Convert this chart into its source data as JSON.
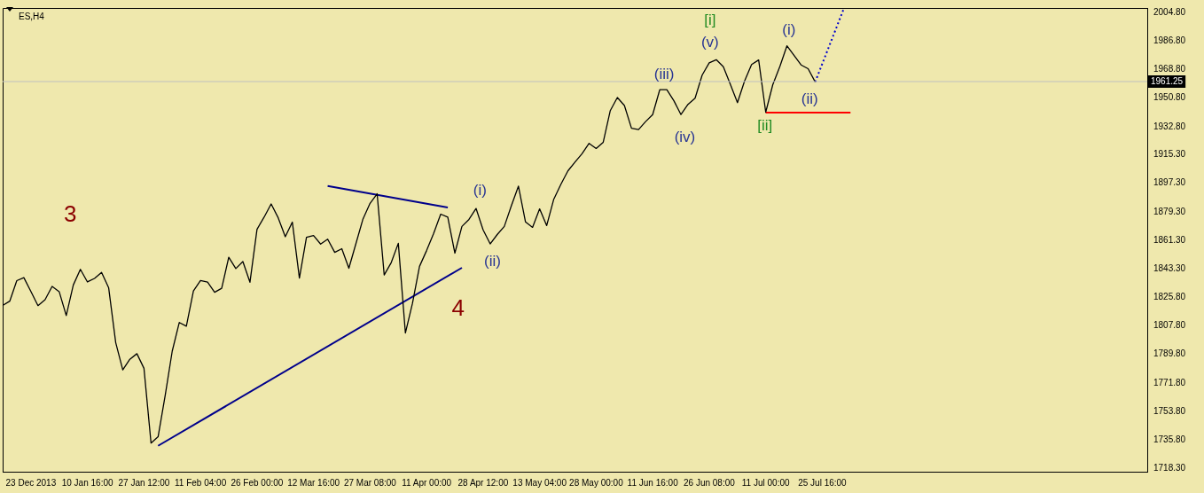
{
  "chart_data": {
    "type": "line",
    "title": "ES,H4",
    "ylim": [
      1716,
      2007.5
    ],
    "categories": [
      null,
      null,
      null,
      null,
      "23 Dec 2013",
      null,
      null,
      null,
      null,
      null,
      null,
      null,
      "10 Jan 16:00",
      null,
      null,
      null,
      null,
      null,
      null,
      null,
      "27 Jan 12:00",
      null,
      null,
      null,
      null,
      null,
      null,
      null,
      "11 Feb 04:00",
      null,
      null,
      null,
      null,
      null,
      null,
      null,
      "26 Feb 00:00",
      null,
      null,
      null,
      null,
      null,
      null,
      null,
      "12 Mar 16:00",
      null,
      null,
      null,
      null,
      null,
      null,
      null,
      "27 Mar 08:00",
      null,
      null,
      null,
      null,
      null,
      null,
      null,
      "11 Apr 00:00",
      null,
      null,
      null,
      null,
      null,
      null,
      null,
      "28 Apr 12:00",
      null,
      null,
      null,
      null,
      null,
      null,
      null,
      "13 May 04:00",
      null,
      null,
      null,
      null,
      null,
      null,
      null,
      "28 May 00:00",
      null,
      null,
      null,
      null,
      null,
      null,
      null,
      "11 Jun 16:00",
      null,
      null,
      null,
      null,
      null,
      null,
      null,
      "26 Jun 08:00",
      null,
      null,
      null,
      null,
      null,
      null,
      null,
      "11 Jul 00:00",
      null,
      null,
      null,
      null,
      null,
      null,
      null,
      "25 Jul 16:00",
      null,
      null,
      null,
      null,
      null,
      null,
      null,
      null,
      null,
      null,
      null,
      null,
      null,
      null,
      null,
      null,
      null,
      null,
      null,
      null,
      null,
      null,
      null,
      null,
      null,
      null,
      null,
      null,
      null,
      null,
      null,
      null,
      null,
      null,
      null,
      null,
      null,
      null,
      null,
      null,
      null,
      null,
      null,
      null,
      null,
      null
    ],
    "yticks": [
      {
        "value": 1718.3,
        "label": "1718.30"
      },
      {
        "value": 1735.8,
        "label": "1735.80"
      },
      {
        "value": 1753.8,
        "label": "1753.80"
      },
      {
        "value": 1771.8,
        "label": "1771.80"
      },
      {
        "value": 1789.8,
        "label": "1789.80"
      },
      {
        "value": 1807.8,
        "label": "1807.80"
      },
      {
        "value": 1825.8,
        "label": "1825.80"
      },
      {
        "value": 1843.3,
        "label": "1843.30"
      },
      {
        "value": 1861.3,
        "label": "1861.30"
      },
      {
        "value": 1879.3,
        "label": "1879.30"
      },
      {
        "value": 1897.3,
        "label": "1897.30"
      },
      {
        "value": 1915.3,
        "label": "1915.30"
      },
      {
        "value": 1932.8,
        "label": "1932.80"
      },
      {
        "value": 1950.8,
        "label": "1950.80"
      },
      {
        "value": 1968.8,
        "label": "1968.80"
      },
      {
        "value": 1986.8,
        "label": "1986.80"
      },
      {
        "value": 2004.8,
        "label": "2004.80"
      }
    ],
    "grid": false,
    "legend": false,
    "marker": "none",
    "ref_lines": [
      {
        "axis": "y",
        "value": 1961.25,
        "label": "1961.25",
        "color": "#c0c0c0"
      }
    ],
    "series": [
      {
        "color": "#000000",
        "values": [
          1820.5,
          1823.2,
          1836.1,
          1838.0,
          1829.3,
          1820.4,
          1824.1,
          1832.5,
          1829.2,
          1814.2,
          1833.4,
          1843.2,
          1835.3,
          1837.5,
          1841.3,
          1831.7,
          1797.2,
          1780.0,
          1786.7,
          1790.2,
          1781.0,
          1734.0,
          1738.0,
          1763.9,
          1791.8,
          1809.8,
          1807.5,
          1829.6,
          1836.2,
          1835.2,
          1828.8,
          1831.3,
          1850.8,
          1843.7,
          1848.1,
          1835.1,
          1868.4,
          1876.0,
          1884.3,
          1875.6,
          1863.7,
          1872.9,
          1837.7,
          1863.4,
          1864.5,
          1859.1,
          1862.2,
          1853.9,
          1856.2,
          1843.9,
          1859.4,
          1874.9,
          1884.7,
          1890.7,
          1839.7,
          1847.5,
          1859.6,
          1803.2,
          1821.8,
          1845.1,
          1855.0,
          1865.8,
          1877.9,
          1876.0,
          1853.4,
          1870.2,
          1874.6,
          1881.5,
          1868.0,
          1859.2,
          1865.1,
          1870.2,
          1883.2,
          1895.5,
          1873.0,
          1869.6,
          1881.2,
          1870.7,
          1887.3,
          1896.6,
          1905.1,
          1910.6,
          1915.9,
          1922.4,
          1919.2,
          1923.1,
          1943.0,
          1951.2,
          1946.2,
          1931.9,
          1931.1,
          1936.1,
          1940.5,
          1956.1,
          1956.1,
          1949.2,
          1940.5,
          1946.9,
          1950.8,
          1965.3,
          1973.0,
          1975.0,
          1970.6,
          1959.4,
          1948.0,
          1961.5,
          1972.0,
          1974.8,
          1942.0,
          1959.3,
          1970.7,
          1983.7,
          1977.7,
          1971.7,
          1969.3,
          1961.0,
          null,
          null,
          null,
          null,
          null,
          null,
          null,
          null,
          null,
          null,
          null,
          null,
          null,
          null,
          null,
          null,
          null,
          null,
          null,
          null,
          null,
          null,
          null,
          null,
          null,
          null,
          null,
          null,
          null,
          null,
          null,
          null,
          null,
          null,
          null,
          null,
          null,
          null,
          null,
          null,
          null,
          null,
          null,
          null,
          null,
          null,
          null
        ]
      },
      {
        "color": "#00008b",
        "values": [
          null,
          null,
          null,
          null,
          null,
          null,
          null,
          null,
          null,
          null,
          null,
          null,
          null,
          null,
          null,
          null,
          null,
          null,
          null,
          null,
          null,
          null,
          null,
          null,
          null,
          null,
          null,
          null,
          null,
          null,
          null,
          null,
          null,
          null,
          null,
          null,
          null,
          null,
          null,
          null,
          null,
          null,
          null,
          null,
          null,
          null,
          1895.6,
          null,
          null,
          null,
          null,
          null,
          null,
          null,
          null,
          null,
          null,
          null,
          null,
          null,
          null,
          null,
          null,
          1882.1,
          null,
          null,
          null,
          null,
          null,
          null,
          null,
          null,
          null,
          null,
          null,
          null,
          null,
          null,
          null,
          null,
          null,
          null,
          null,
          null,
          null,
          null,
          null,
          null,
          null,
          null,
          null,
          null,
          null,
          null,
          null,
          null,
          null,
          null,
          null,
          null,
          null,
          null,
          null,
          null,
          null,
          null,
          null,
          null,
          null,
          null,
          null,
          null,
          null,
          null,
          null,
          null,
          null,
          null,
          null,
          null,
          null,
          null,
          null,
          null,
          null,
          null,
          null,
          null,
          null,
          null,
          null,
          null,
          null,
          null,
          null,
          null,
          null,
          null,
          null,
          null,
          null,
          null,
          null,
          null,
          null,
          null,
          null,
          null,
          null,
          null,
          null,
          null,
          null,
          null,
          null,
          null,
          null,
          null,
          null,
          null,
          null,
          null,
          null
        ]
      },
      {
        "color": "#00008b",
        "values": [
          null,
          null,
          null,
          null,
          null,
          null,
          null,
          null,
          null,
          null,
          null,
          null,
          null,
          null,
          null,
          null,
          null,
          null,
          null,
          null,
          null,
          null,
          1732.3,
          null,
          null,
          null,
          null,
          null,
          null,
          null,
          null,
          null,
          null,
          null,
          null,
          null,
          null,
          null,
          null,
          null,
          null,
          null,
          null,
          null,
          null,
          null,
          null,
          null,
          null,
          null,
          null,
          null,
          null,
          null,
          null,
          null,
          null,
          null,
          null,
          null,
          null,
          null,
          null,
          null,
          null,
          1844.2,
          null,
          null,
          null,
          null,
          null,
          null,
          null,
          null,
          null,
          null,
          null,
          null,
          null,
          null,
          null,
          null,
          null,
          null,
          null,
          null,
          null,
          null,
          null,
          null,
          null,
          null,
          null,
          null,
          null,
          null,
          null,
          null,
          null,
          null,
          null,
          null,
          null,
          null,
          null,
          null,
          null,
          null,
          null,
          null,
          null,
          null,
          null,
          null,
          null,
          null,
          null,
          null,
          null,
          null,
          null,
          null,
          null,
          null,
          null,
          null,
          null,
          null,
          null,
          null,
          null,
          null,
          null,
          null,
          null,
          null,
          null,
          null,
          null,
          null,
          null,
          null,
          null,
          null,
          null,
          null,
          null,
          null,
          null,
          null,
          null,
          null,
          null,
          null,
          null,
          null,
          null,
          null,
          null,
          null,
          null,
          null,
          null
        ]
      },
      {
        "color": "#ff0000",
        "values": [
          null,
          null,
          null,
          null,
          null,
          null,
          null,
          null,
          null,
          null,
          null,
          null,
          null,
          null,
          null,
          null,
          null,
          null,
          null,
          null,
          null,
          null,
          null,
          null,
          null,
          null,
          null,
          null,
          null,
          null,
          null,
          null,
          null,
          null,
          null,
          null,
          null,
          null,
          null,
          null,
          null,
          null,
          null,
          null,
          null,
          null,
          null,
          null,
          null,
          null,
          null,
          null,
          null,
          null,
          null,
          null,
          null,
          null,
          null,
          null,
          null,
          null,
          null,
          null,
          null,
          null,
          null,
          null,
          null,
          null,
          null,
          null,
          null,
          null,
          null,
          null,
          null,
          null,
          null,
          null,
          null,
          null,
          null,
          null,
          null,
          null,
          null,
          null,
          null,
          null,
          null,
          null,
          null,
          null,
          null,
          null,
          null,
          null,
          null,
          null,
          null,
          null,
          null,
          null,
          null,
          null,
          null,
          null,
          1941.8,
          null,
          null,
          null,
          null,
          null,
          null,
          null,
          null,
          null,
          null,
          null,
          1941.8,
          null,
          null,
          null,
          null,
          null,
          null,
          null,
          null,
          null,
          null,
          null,
          null,
          null,
          null,
          null,
          null,
          null,
          null,
          null,
          null,
          null,
          null,
          null,
          null,
          null,
          null,
          null,
          null,
          null,
          null,
          null,
          null,
          null,
          null,
          null,
          null,
          null,
          null,
          null,
          null,
          null,
          null
        ]
      },
      {
        "color": "#0000cd",
        "line_style": "dotted",
        "values": [
          null,
          null,
          null,
          null,
          null,
          null,
          null,
          null,
          null,
          null,
          null,
          null,
          null,
          null,
          null,
          null,
          null,
          null,
          null,
          null,
          null,
          null,
          null,
          null,
          null,
          null,
          null,
          null,
          null,
          null,
          null,
          null,
          null,
          null,
          null,
          null,
          null,
          null,
          null,
          null,
          null,
          null,
          null,
          null,
          null,
          null,
          null,
          null,
          null,
          null,
          null,
          null,
          null,
          null,
          null,
          null,
          null,
          null,
          null,
          null,
          null,
          null,
          null,
          null,
          null,
          null,
          null,
          null,
          null,
          null,
          null,
          null,
          null,
          null,
          null,
          null,
          null,
          null,
          null,
          null,
          null,
          null,
          null,
          null,
          null,
          null,
          null,
          null,
          null,
          null,
          null,
          null,
          null,
          null,
          null,
          null,
          null,
          null,
          null,
          null,
          null,
          null,
          null,
          null,
          null,
          null,
          null,
          null,
          null,
          null,
          null,
          null,
          null,
          null,
          null,
          1961.0,
          null,
          null,
          null,
          2006.5,
          null,
          null,
          null,
          null,
          null,
          null,
          null,
          null,
          null,
          null,
          null,
          null,
          null,
          null,
          null,
          null,
          null,
          null,
          null,
          null,
          null,
          null,
          null,
          null,
          null,
          null,
          null,
          null,
          null,
          null,
          null,
          null,
          null,
          null,
          null,
          null,
          null,
          null,
          null,
          null,
          null,
          null,
          null
        ]
      }
    ],
    "annotations": [
      "3",
      "4",
      "(i)",
      "(ii)",
      "(iii)",
      "(iv)",
      "(v)",
      "[i]",
      "[ii]",
      "(i)",
      "(ii)"
    ]
  }
}
